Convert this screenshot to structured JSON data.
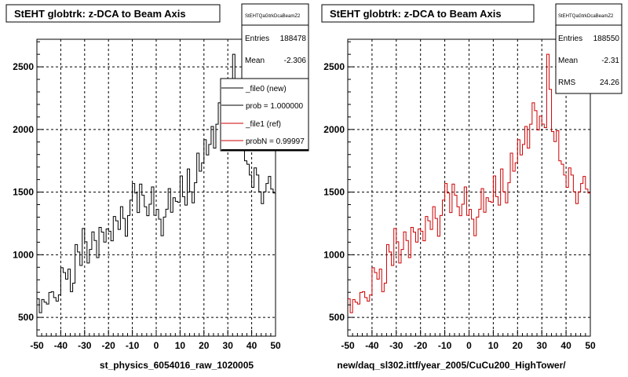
{
  "chart_data": [
    {
      "type": "bar",
      "title": "StEHT globtrk: z-DCA to Beam Axis",
      "xlabel": "st_physics_6054016_raw_1020005",
      "x_ticks": [
        "-50",
        "-40",
        "-30",
        "-20",
        "-10",
        "0",
        "10",
        "20",
        "30",
        "40",
        "50"
      ],
      "y_ticks": [
        "500",
        "1000",
        "1500",
        "2000",
        "2500"
      ],
      "xlim": [
        -50,
        50
      ],
      "ylim": [
        350,
        2720
      ],
      "grid": true,
      "stats": {
        "name": "StEHTQaGtrkDcaBeamZ2",
        "rows": [
          {
            "label": "Entries",
            "value": "188478"
          },
          {
            "label": "Mean",
            "value": "-2.306"
          }
        ]
      },
      "legend": {
        "placement": "top-right",
        "entries": [
          "_file0 (new)",
          "prob = 1.000000",
          "_file1 (ref)",
          "probN = 0.99997"
        ]
      },
      "series": [
        {
          "name": "_file0 (new)",
          "color": "#000000",
          "x_start": -50,
          "bin_width": 1,
          "values": [
            648,
            537,
            642,
            621,
            606,
            699,
            705,
            658,
            630,
            680,
            896,
            858,
            805,
            885,
            705,
            773,
            1081,
            1022,
            914,
            1210,
            1103,
            934,
            1042,
            1182,
            1113,
            977,
            1218,
            1181,
            1101,
            1206,
            1188,
            1111,
            1305,
            1271,
            1202,
            1384,
            1290,
            1148,
            1313,
            1436,
            1569,
            1493,
            1337,
            1564,
            1475,
            1383,
            1312,
            1403,
            1541,
            1315,
            1362,
            1284,
            1152,
            1301,
            1363,
            1528,
            1339,
            1455,
            1426,
            1418,
            1629,
            1464,
            1396,
            1685,
            1503,
            1414,
            1575,
            1811,
            1667,
            1734,
            1918,
            1797,
            1881,
            2024,
            1851,
            2042,
            2213,
            2150,
            1996,
            2106,
            2043,
            2015,
            2600,
            2320,
            1983,
            1903,
            1990,
            1750,
            1722,
            1636,
            1538,
            1693,
            1636,
            1503,
            1408,
            1502,
            1569,
            1625,
            1524,
            1493
          ]
        }
      ]
    },
    {
      "type": "bar",
      "title": "StEHT globtrk: z-DCA to Beam Axis",
      "xlabel": "new/daq_sl302.ittf/year_2005/CuCu200_HighTower/",
      "x_ticks": [
        "-50",
        "-40",
        "-30",
        "-20",
        "-10",
        "0",
        "10",
        "20",
        "30",
        "40",
        "50"
      ],
      "y_ticks": [
        "500",
        "1000",
        "1500",
        "2000",
        "2500"
      ],
      "xlim": [
        -50,
        50
      ],
      "ylim": [
        350,
        2720
      ],
      "grid": true,
      "stats": {
        "name": "StEHTQaGtrkDcaBeamZ2",
        "rows": [
          {
            "label": "Entries",
            "value": "188550"
          },
          {
            "label": "Mean",
            "value": "-2.31"
          },
          {
            "label": "RMS",
            "value": "24.26"
          }
        ]
      },
      "series": [
        {
          "name": "_file1 (ref)",
          "color": "#cc0000",
          "x_start": -50,
          "bin_width": 1,
          "values": [
            648,
            537,
            642,
            621,
            606,
            699,
            705,
            658,
            630,
            680,
            896,
            858,
            805,
            885,
            705,
            773,
            1081,
            1022,
            914,
            1210,
            1103,
            934,
            1042,
            1182,
            1113,
            977,
            1218,
            1181,
            1101,
            1206,
            1188,
            1111,
            1305,
            1271,
            1202,
            1384,
            1290,
            1148,
            1313,
            1436,
            1569,
            1493,
            1337,
            1564,
            1475,
            1383,
            1312,
            1403,
            1541,
            1315,
            1362,
            1284,
            1152,
            1301,
            1363,
            1528,
            1339,
            1455,
            1426,
            1418,
            1629,
            1464,
            1396,
            1685,
            1503,
            1414,
            1575,
            1811,
            1667,
            1734,
            1918,
            1797,
            1881,
            2024,
            1851,
            2042,
            2213,
            2150,
            1996,
            2106,
            2043,
            2015,
            2600,
            2320,
            1983,
            1903,
            1990,
            1750,
            1722,
            1636,
            1538,
            1693,
            1636,
            1503,
            1408,
            1502,
            1569,
            1625,
            1524,
            1493
          ]
        }
      ]
    }
  ]
}
